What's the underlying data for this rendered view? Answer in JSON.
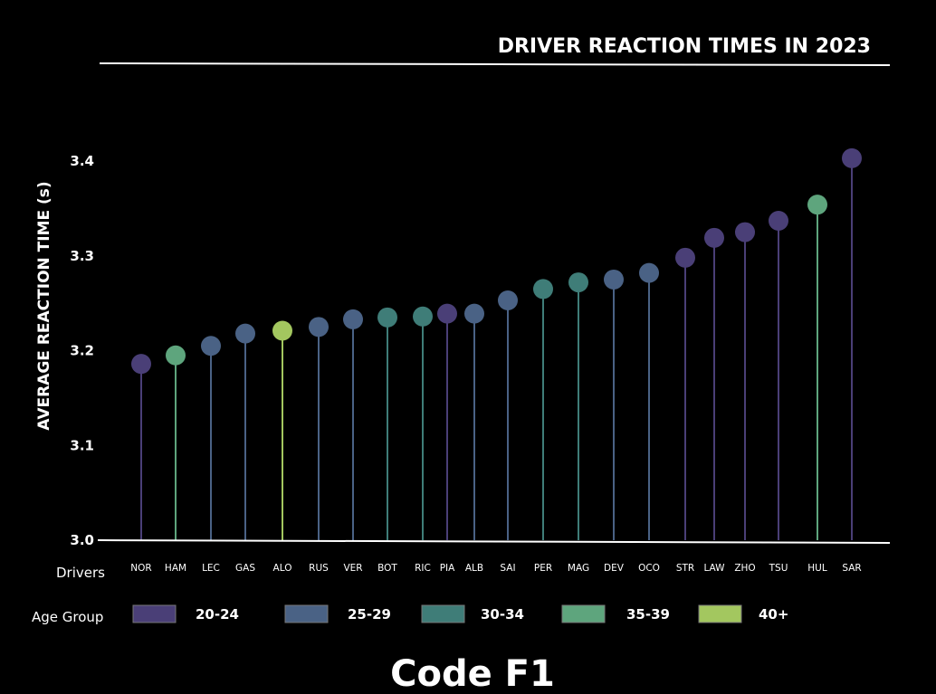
{
  "chart_data": {
    "type": "lollipop",
    "title": "DRIVER REACTION TIMES IN 2023",
    "ylabel": "AVERAGE REACTION TIME (s)",
    "xlabel": "Drivers",
    "ylim": [
      3.0,
      3.4
    ],
    "yticks": [
      "3.0",
      "3.1",
      "3.2",
      "3.3",
      "3.4"
    ],
    "points": [
      {
        "driver": "NOR",
        "value": 3.186,
        "group": "20-24"
      },
      {
        "driver": "HAM",
        "value": 3.195,
        "group": "35-39"
      },
      {
        "driver": "LEC",
        "value": 3.205,
        "group": "25-29"
      },
      {
        "driver": "GAS",
        "value": 3.218,
        "group": "25-29"
      },
      {
        "driver": "ALO",
        "value": 3.221,
        "group": "40+"
      },
      {
        "driver": "RUS",
        "value": 3.225,
        "group": "25-29"
      },
      {
        "driver": "VER",
        "value": 3.233,
        "group": "25-29"
      },
      {
        "driver": "BOT",
        "value": 3.235,
        "group": "30-34"
      },
      {
        "driver": "RIC",
        "value": 3.236,
        "group": "30-34"
      },
      {
        "driver": "PIA",
        "value": 3.239,
        "group": "20-24"
      },
      {
        "driver": "ALB",
        "value": 3.239,
        "group": "25-29"
      },
      {
        "driver": "SAI",
        "value": 3.253,
        "group": "25-29"
      },
      {
        "driver": "PER",
        "value": 3.265,
        "group": "30-34"
      },
      {
        "driver": "MAG",
        "value": 3.272,
        "group": "30-34"
      },
      {
        "driver": "DEV",
        "value": 3.275,
        "group": "25-29"
      },
      {
        "driver": "OCO",
        "value": 3.282,
        "group": "25-29"
      },
      {
        "driver": "STR",
        "value": 3.298,
        "group": "20-24"
      },
      {
        "driver": "LAW",
        "value": 3.319,
        "group": "20-24"
      },
      {
        "driver": "ZHO",
        "value": 3.325,
        "group": "20-24"
      },
      {
        "driver": "TSU",
        "value": 3.337,
        "group": "20-24"
      },
      {
        "driver": "HUL",
        "value": 3.354,
        "group": "35-39"
      },
      {
        "driver": "SAR",
        "value": 3.403,
        "group": "20-24"
      }
    ],
    "legend_title": "Age Group",
    "legend": [
      {
        "label": "20-24",
        "color": "#4a3f77"
      },
      {
        "label": "25-29",
        "color": "#4a6285"
      },
      {
        "label": "30-34",
        "color": "#3f7d78"
      },
      {
        "label": "35-39",
        "color": "#5ea57d"
      },
      {
        "label": "40+",
        "color": "#a3c75f"
      }
    ]
  },
  "brand": "Code F1"
}
